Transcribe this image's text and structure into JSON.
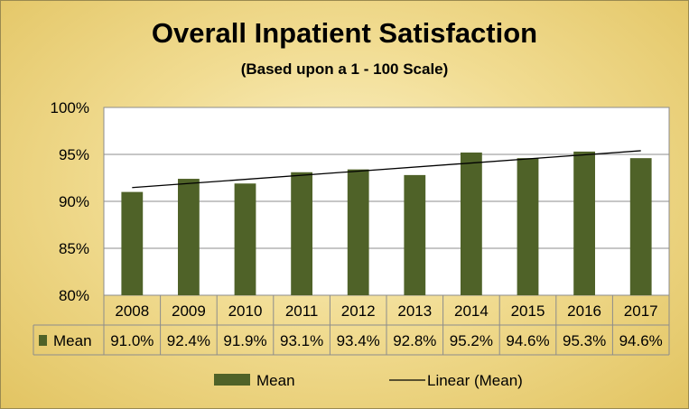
{
  "chart_data": {
    "type": "bar",
    "title": "Overall Inpatient Satisfaction",
    "subtitle": "(Based upon a 1 - 100 Scale)",
    "categories": [
      "2008",
      "2009",
      "2010",
      "2011",
      "2012",
      "2013",
      "2014",
      "2015",
      "2016",
      "2017"
    ],
    "series": [
      {
        "name": "Mean",
        "values": [
          91.0,
          92.4,
          91.9,
          93.1,
          93.4,
          92.8,
          95.2,
          94.6,
          95.3,
          94.6
        ],
        "labels": [
          "91.0%",
          "92.4%",
          "91.9%",
          "93.1%",
          "93.4%",
          "92.8%",
          "95.2%",
          "94.6%",
          "95.3%",
          "94.6%"
        ],
        "color": "#4f6228"
      }
    ],
    "trendline": {
      "name": "Linear (Mean)",
      "type": "linear",
      "color": "#000000"
    },
    "ylim": [
      80,
      100
    ],
    "yticks": [
      "80%",
      "85%",
      "90%",
      "95%",
      "100%"
    ],
    "grid": true,
    "legend": "bottom",
    "data_table": true
  }
}
